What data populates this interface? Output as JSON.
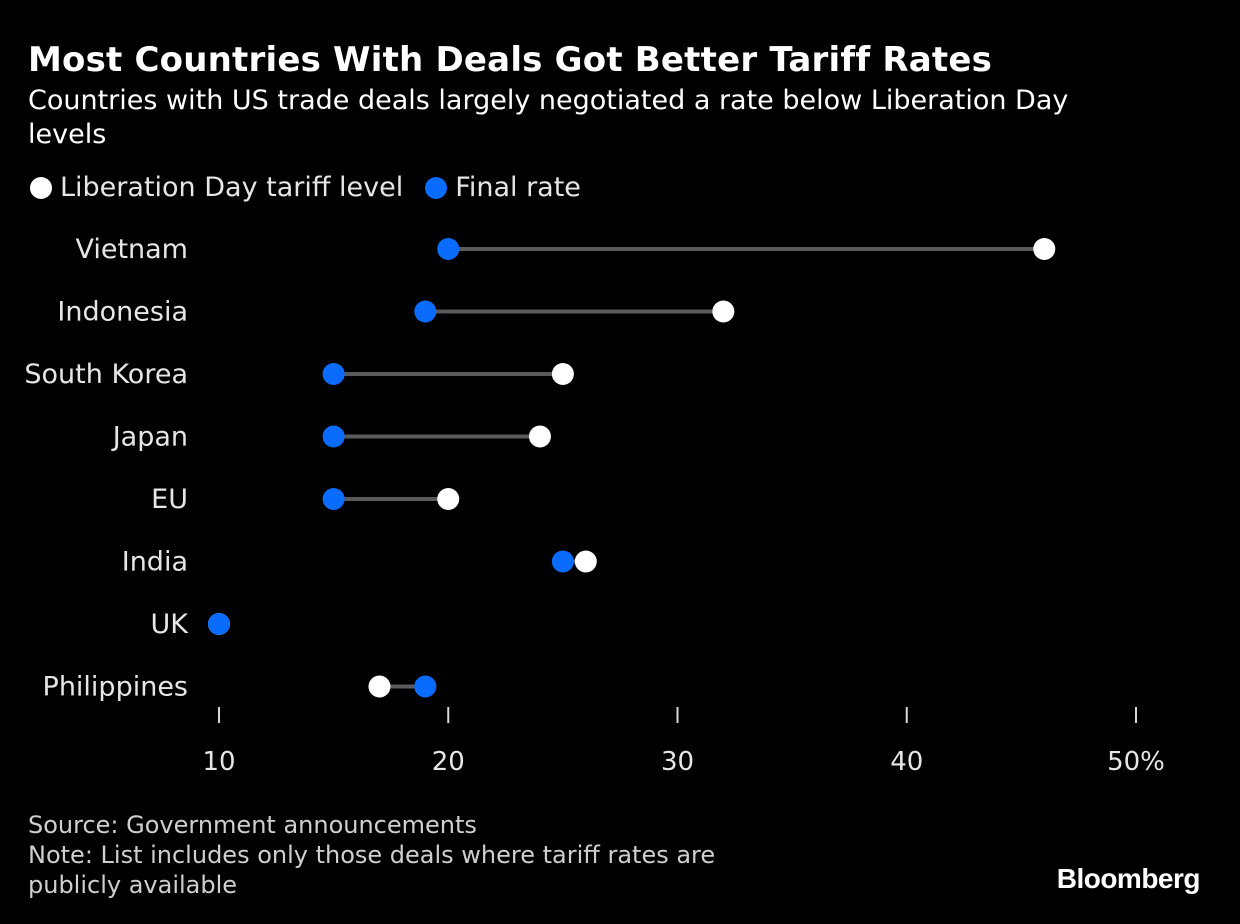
{
  "title": "Most Countries With Deals Got Better Tariff Rates",
  "subtitle": "Countries with US trade deals largely negotiated a rate below Liberation Day levels",
  "legend": {
    "liberation_label": "Liberation Day tariff level",
    "final_label": "Final rate"
  },
  "colors": {
    "liberation": "#ffffff",
    "final": "#0a6cff",
    "connector": "#5a5a5a",
    "axis_text": "#e6e6e6"
  },
  "chart_data": {
    "type": "dot-plot",
    "categories": [
      "Vietnam",
      "Indonesia",
      "South Korea",
      "Japan",
      "EU",
      "India",
      "UK",
      "Philippines"
    ],
    "series": [
      {
        "name": "Liberation Day tariff level",
        "values": [
          46,
          32,
          25,
          24,
          20,
          26,
          10,
          17
        ]
      },
      {
        "name": "Final rate",
        "values": [
          20,
          19,
          15,
          15,
          15,
          25,
          10,
          19
        ]
      }
    ],
    "xlim": [
      10,
      50
    ],
    "xticks": [
      10,
      20,
      30,
      40,
      50
    ],
    "xtick_labels": [
      "10",
      "20",
      "30",
      "40",
      "50%"
    ]
  },
  "footer": {
    "source": "Source: Government announcements",
    "note": "Note: List includes only those deals where tariff rates are\npublicly available"
  },
  "brand": "Bloomberg"
}
